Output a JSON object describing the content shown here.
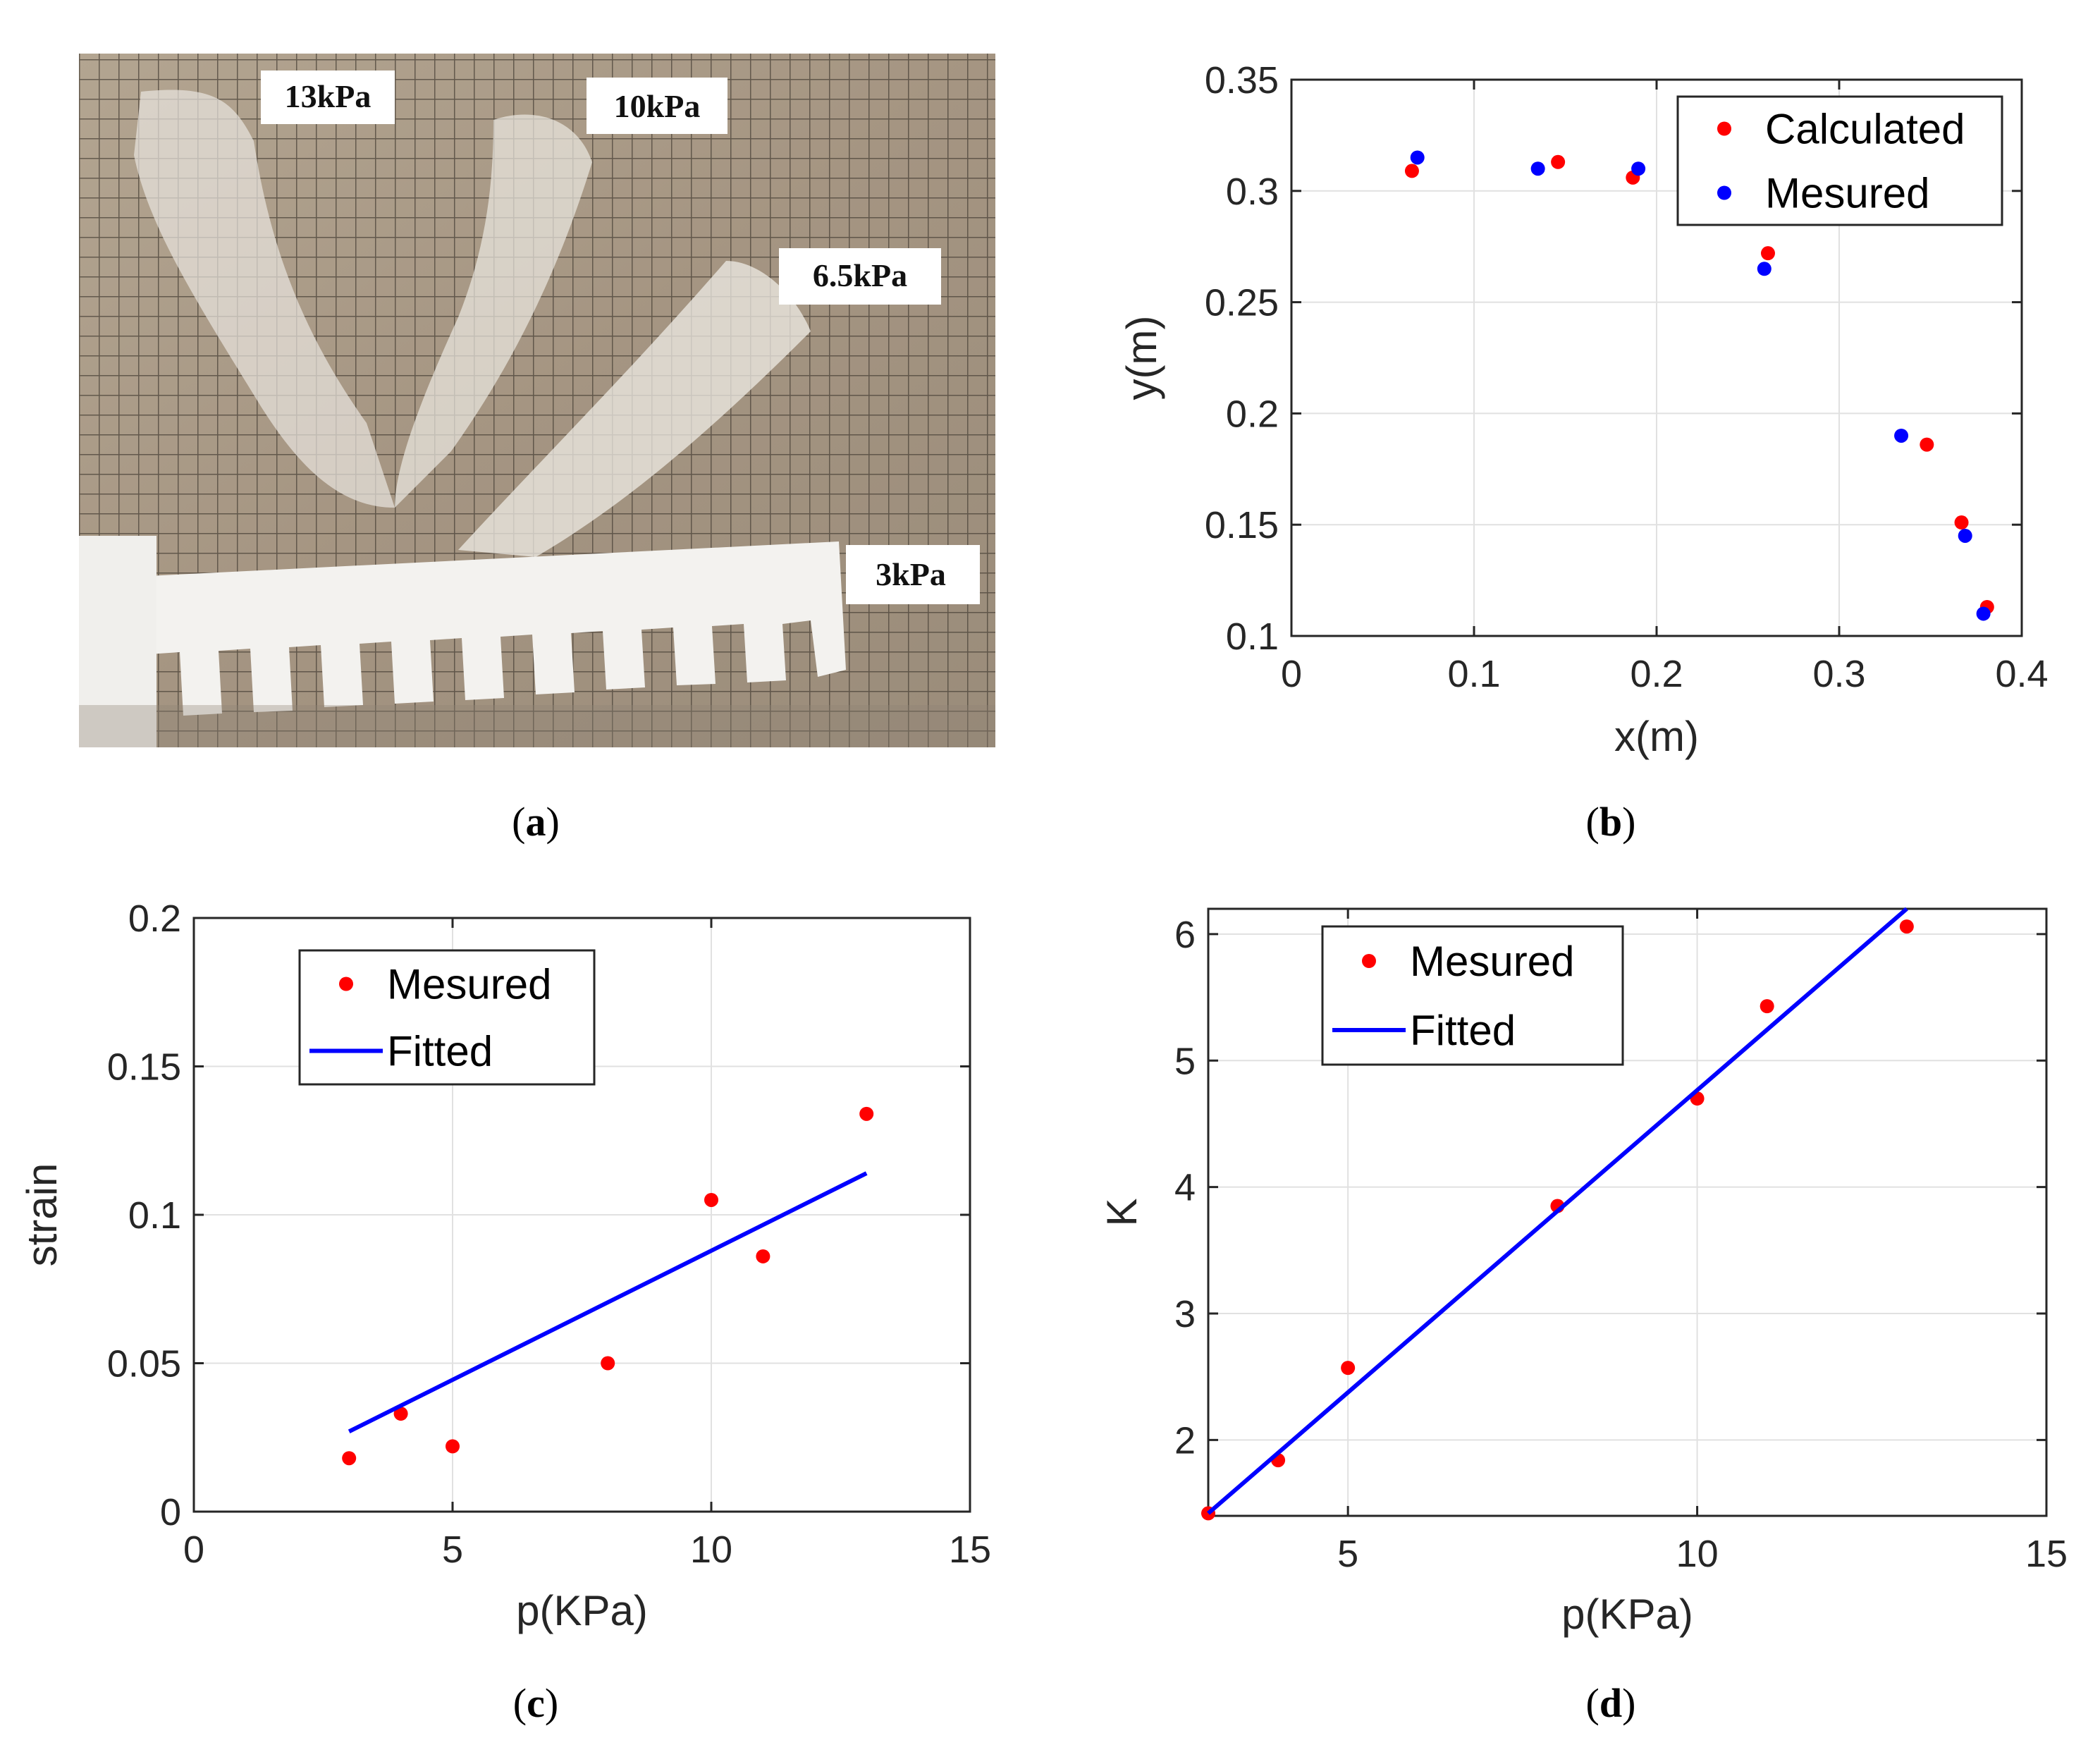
{
  "panel_labels": {
    "a": "a",
    "b": "b",
    "c": "c",
    "d": "d"
  },
  "photo": {
    "description_tags": [
      "13kPa",
      "10kPa",
      "6.5kPa",
      "3kPa"
    ]
  },
  "colors": {
    "calculated": "#ff0000",
    "measured_b": "#0000ff",
    "measured": "#ff0000",
    "fitted": "#0000ff"
  },
  "chart_data": [
    {
      "id": "b",
      "type": "scatter",
      "xlabel": "x(m)",
      "ylabel": "y(m)",
      "xlim": [
        0,
        0.4
      ],
      "ylim": [
        0.1,
        0.35
      ],
      "xticks": [
        0,
        0.1,
        0.2,
        0.3,
        0.4
      ],
      "xtick_labels": [
        "0",
        "0.1",
        "0.2",
        "0.3",
        "0.4"
      ],
      "yticks": [
        0.1,
        0.15,
        0.2,
        0.25,
        0.3,
        0.35
      ],
      "ytick_labels": [
        "0.1",
        "0.15",
        "0.2",
        "0.25",
        "0.3",
        "0.35"
      ],
      "grid": true,
      "legend_position": "top-right",
      "series": [
        {
          "name": "Calculated",
          "color": "#ff0000",
          "x": [
            0.066,
            0.146,
            0.187,
            0.261,
            0.348,
            0.367,
            0.381
          ],
          "y": [
            0.309,
            0.313,
            0.306,
            0.272,
            0.186,
            0.151,
            0.113
          ]
        },
        {
          "name": "Mesured",
          "color": "#0000ff",
          "x": [
            0.069,
            0.135,
            0.19,
            0.259,
            0.334,
            0.369,
            0.379
          ],
          "y": [
            0.315,
            0.31,
            0.31,
            0.265,
            0.19,
            0.145,
            0.11
          ]
        }
      ]
    },
    {
      "id": "c",
      "type": "scatter",
      "xlabel": "p(KPa)",
      "ylabel": "strain",
      "xlim": [
        0,
        15
      ],
      "ylim": [
        0,
        0.2
      ],
      "xticks": [
        0,
        5,
        10,
        15
      ],
      "xtick_labels": [
        "0",
        "5",
        "10",
        "15"
      ],
      "yticks": [
        0,
        0.05,
        0.1,
        0.15,
        0.2
      ],
      "ytick_labels": [
        "0",
        "0.05",
        "0.1",
        "0.15",
        "0.2"
      ],
      "grid": true,
      "legend_position": "top-left",
      "series": [
        {
          "name": "Mesured",
          "kind": "points",
          "color": "#ff0000",
          "x": [
            3,
            4,
            5,
            8,
            10,
            11,
            13
          ],
          "y": [
            0.018,
            0.033,
            0.022,
            0.05,
            0.105,
            0.086,
            0.134
          ]
        },
        {
          "name": "Fitted",
          "kind": "line",
          "color": "#0000ff",
          "x": [
            3,
            13
          ],
          "y": [
            0.027,
            0.114
          ]
        }
      ]
    },
    {
      "id": "d",
      "type": "scatter",
      "xlabel": "p(KPa)",
      "ylabel": "K",
      "xlim": [
        3,
        15
      ],
      "ylim": [
        1.4,
        6.2
      ],
      "xticks": [
        5,
        10,
        15
      ],
      "xtick_labels": [
        "5",
        "10",
        "15"
      ],
      "yticks": [
        2,
        3,
        4,
        5,
        6
      ],
      "ytick_labels": [
        "2",
        "3",
        "4",
        "5",
        "6"
      ],
      "grid": true,
      "legend_position": "top-left",
      "series": [
        {
          "name": "Mesured",
          "kind": "points",
          "color": "#ff0000",
          "x": [
            3,
            4,
            5,
            8,
            10,
            11,
            13
          ],
          "y": [
            1.42,
            1.84,
            2.57,
            3.85,
            4.7,
            5.43,
            6.06
          ]
        },
        {
          "name": "Fitted",
          "kind": "line",
          "color": "#0000ff",
          "x": [
            3,
            13
          ],
          "y": [
            1.42,
            6.2
          ]
        }
      ]
    }
  ]
}
